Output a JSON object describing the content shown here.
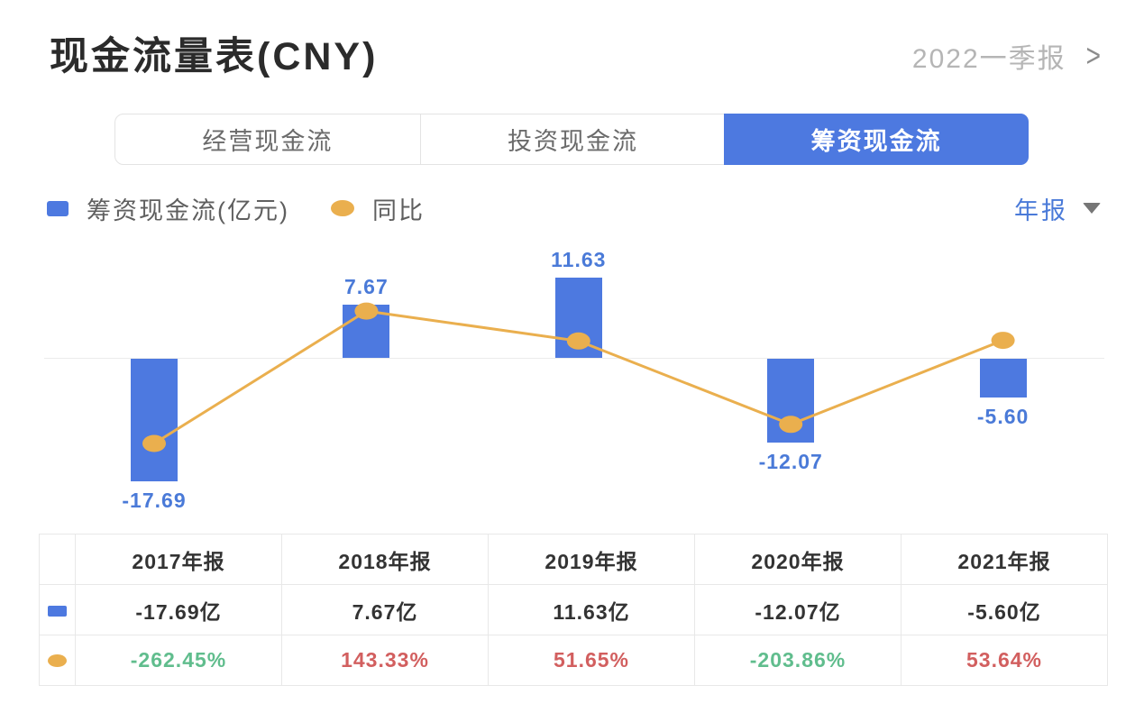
{
  "header": {
    "title": "现金流量表(CNY)",
    "period": "2022一季报",
    "chevron": ">"
  },
  "tabs": {
    "items": [
      {
        "label": "经营现金流",
        "active": false
      },
      {
        "label": "投资现金流",
        "active": false
      },
      {
        "label": "筹资现金流",
        "active": true
      }
    ]
  },
  "legend": {
    "bar_label": "筹资现金流(亿元)",
    "line_label": "同比",
    "period_filter": "年报"
  },
  "colors": {
    "accent_blue": "#4d79e0",
    "label_blue": "#4a7ad8",
    "line_orange": "#eaaf4e",
    "positive_red": "#d25f5f",
    "negative_green": "#60bd8d"
  },
  "chart_data": {
    "type": "bar",
    "subtype": "bar+line combo",
    "categories": [
      "2017年报",
      "2018年报",
      "2019年报",
      "2020年报",
      "2021年报"
    ],
    "series": [
      {
        "name": "筹资现金流(亿元)",
        "type": "bar",
        "color": "#4d79e0",
        "values": [
          -17.69,
          7.67,
          11.63,
          -12.07,
          -5.6
        ],
        "labels": [
          "-17.69",
          "7.67",
          "11.63",
          "-12.07",
          "-5.60"
        ]
      },
      {
        "name": "同比",
        "type": "line",
        "color": "#eaaf4e",
        "values": [
          -262.45,
          143.33,
          51.65,
          -203.86,
          53.64
        ]
      }
    ],
    "title": "筹资现金流 年报",
    "xlabel": "",
    "ylabel_bar": "亿元",
    "ylabel_line": "%",
    "ylim_bar": [
      -20,
      15
    ],
    "ylim_line": [
      -380,
      280
    ],
    "grid": false,
    "zero_line": true,
    "legend_position": "top-left"
  },
  "table": {
    "columns": [
      "",
      "2017年报",
      "2018年报",
      "2019年报",
      "2020年报",
      "2021年报"
    ],
    "rows": [
      {
        "icon": "bar-series-icon",
        "icon_class": "icon-bar",
        "values": [
          "-17.69亿",
          "7.67亿",
          "11.63亿",
          "-12.07亿",
          "-5.60亿"
        ],
        "value_colors": [
          "#333333",
          "#333333",
          "#333333",
          "#333333",
          "#333333"
        ]
      },
      {
        "icon": "line-series-icon",
        "icon_class": "icon-line",
        "values": [
          "-262.45%",
          "143.33%",
          "51.65%",
          "-203.86%",
          "53.64%"
        ],
        "value_colors": [
          "#60bd8d",
          "#d25f5f",
          "#d25f5f",
          "#60bd8d",
          "#d25f5f"
        ]
      }
    ]
  }
}
